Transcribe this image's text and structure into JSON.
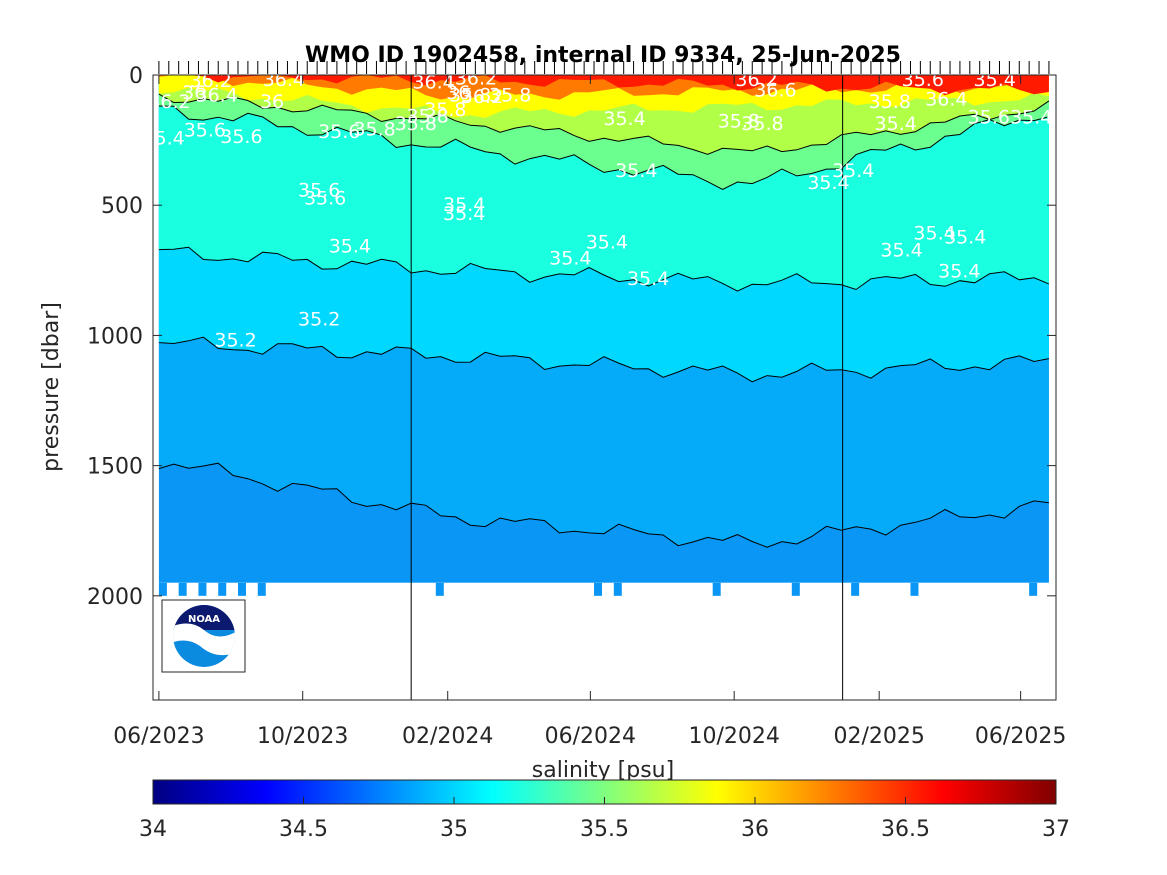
{
  "chart_data": {
    "type": "contour",
    "title": "WMO ID 1902458, internal ID 9334, 25-Jun-2025",
    "xlabel": "",
    "ylabel": "pressure [dbar]",
    "x_ticks": [
      "06/2023",
      "10/2023",
      "02/2024",
      "06/2024",
      "10/2024",
      "02/2025",
      "06/2025"
    ],
    "x_range": [
      "2023-05-27",
      "2025-07-01"
    ],
    "year_boundaries": [
      "2024-01-01",
      "2025-01-01"
    ],
    "profile_dates_start": "2023-06-01",
    "profile_dates_end": "2025-06-25",
    "y_ticks": [
      0,
      500,
      1000,
      1500,
      2000
    ],
    "ylim": [
      0,
      2400
    ],
    "y_reversed": true,
    "max_profile_pressure": [
      2000,
      1950
    ],
    "colorbar": {
      "label": "salinity [psu]",
      "range": [
        34,
        37
      ],
      "ticks": [
        "34",
        "34.5",
        "35",
        "35.5",
        "36",
        "36.5",
        "37"
      ],
      "colormap": "jet"
    },
    "contour_levels": [
      35.0,
      35.2,
      35.4,
      35.6,
      35.8,
      36.0,
      36.2,
      36.4,
      36.6
    ],
    "layers": [
      {
        "salinity": 34.9,
        "color": "#0a96f5",
        "lower_depth": 1950
      },
      {
        "salinity": 34.95,
        "color": "#05aaf8",
        "upper_depth": [
          1480,
          1700,
          1800,
          1650
        ]
      },
      {
        "salinity": 35.05,
        "color": "#00d8ff",
        "upper_depth": [
          1030,
          1080,
          1150,
          1100
        ]
      },
      {
        "salinity": 35.25,
        "color": "#19ffe0",
        "upper_depth": [
          680,
          750,
          800,
          780
        ]
      },
      {
        "salinity": 35.45,
        "color": "#6bff8f",
        "upper_depth": [
          130,
          280,
          420,
          140
        ]
      },
      {
        "salinity": 35.7,
        "color": "#b2ff48",
        "upper_depth": [
          80,
          180,
          300,
          120
        ]
      },
      {
        "salinity": 35.9,
        "color": "#ffff00",
        "upper_depth": [
          50,
          150,
          120,
          90
        ]
      },
      {
        "salinity": 36.3,
        "color": "#ff7a00",
        "upper_depth": [
          0,
          80,
          60,
          40
        ]
      },
      {
        "salinity": 36.6,
        "color": "#ff1a00",
        "upper_depth": [
          0,
          60
        ]
      }
    ],
    "contour_labels": [
      {
        "text": "36.2",
        "date": "2023-07-15",
        "p": 20
      },
      {
        "text": "36.4",
        "date": "2023-09-15",
        "p": 15
      },
      {
        "text": "36",
        "date": "2023-07-01",
        "p": 65
      },
      {
        "text": "36.4",
        "date": "2023-07-20",
        "p": 75
      },
      {
        "text": "36.2",
        "date": "2023-06-10",
        "p": 100
      },
      {
        "text": "36",
        "date": "2023-09-05",
        "p": 100
      },
      {
        "text": "35.6",
        "date": "2023-07-10",
        "p": 210
      },
      {
        "text": "35.6",
        "date": "2023-08-10",
        "p": 235
      },
      {
        "text": "35.4",
        "date": "2023-06-05",
        "p": 240
      },
      {
        "text": "35.6",
        "date": "2023-11-01",
        "p": 215
      },
      {
        "text": "35.8",
        "date": "2023-12-01",
        "p": 205
      },
      {
        "text": "35.8",
        "date": "2024-01-05",
        "p": 185
      },
      {
        "text": "36.4",
        "date": "2024-01-20",
        "p": 25
      },
      {
        "text": "36.2",
        "date": "2024-02-25",
        "p": 10
      },
      {
        "text": "36",
        "date": "2024-02-10",
        "p": 65
      },
      {
        "text": "35.8",
        "date": "2024-02-20",
        "p": 75
      },
      {
        "text": "36.2",
        "date": "2024-03-01",
        "p": 80
      },
      {
        "text": "35.8",
        "date": "2024-03-25",
        "p": 75
      },
      {
        "text": "35.8",
        "date": "2024-01-15",
        "p": 155
      },
      {
        "text": "35.8",
        "date": "2024-01-30",
        "p": 130
      },
      {
        "text": "35.4",
        "date": "2024-06-30",
        "p": 165
      },
      {
        "text": "35.4",
        "date": "2024-07-10",
        "p": 365
      },
      {
        "text": "36.2",
        "date": "2024-10-20",
        "p": 15
      },
      {
        "text": "36.6",
        "date": "2024-11-05",
        "p": 55
      },
      {
        "text": "35.8",
        "date": "2024-10-05",
        "p": 175
      },
      {
        "text": "35.8",
        "date": "2024-10-25",
        "p": 185
      },
      {
        "text": "35.4",
        "date": "2024-12-20",
        "p": 410
      },
      {
        "text": "35.4",
        "date": "2025-01-10",
        "p": 365
      },
      {
        "text": "35.6",
        "date": "2025-03-10",
        "p": 15
      },
      {
        "text": "35.4",
        "date": "2025-05-10",
        "p": 15
      },
      {
        "text": "35.8",
        "date": "2025-02-10",
        "p": 100
      },
      {
        "text": "36.4",
        "date": "2025-03-30",
        "p": 90
      },
      {
        "text": "35.4",
        "date": "2025-02-15",
        "p": 185
      },
      {
        "text": "35.6",
        "date": "2025-05-05",
        "p": 160
      },
      {
        "text": "35.4",
        "date": "2025-06-10",
        "p": 160
      },
      {
        "text": "35.6",
        "date": "2023-10-15",
        "p": 440
      },
      {
        "text": "35.6",
        "date": "2023-10-20",
        "p": 470
      },
      {
        "text": "35.4",
        "date": "2024-02-15",
        "p": 495
      },
      {
        "text": "35.4",
        "date": "2024-02-15",
        "p": 530
      },
      {
        "text": "35.4",
        "date": "2023-11-10",
        "p": 655
      },
      {
        "text": "35.4",
        "date": "2024-05-15",
        "p": 700
      },
      {
        "text": "35.4",
        "date": "2024-06-15",
        "p": 640
      },
      {
        "text": "35.4",
        "date": "2024-07-20",
        "p": 780
      },
      {
        "text": "35.4",
        "date": "2025-03-20",
        "p": 605
      },
      {
        "text": "35.4",
        "date": "2025-04-15",
        "p": 620
      },
      {
        "text": "35.4",
        "date": "2025-02-20",
        "p": 670
      },
      {
        "text": "35.4",
        "date": "2025-04-10",
        "p": 750
      },
      {
        "text": "35.2",
        "date": "2023-10-15",
        "p": 935
      },
      {
        "text": "35.2",
        "date": "2023-08-05",
        "p": 1015
      }
    ],
    "logo": "NOAA"
  }
}
